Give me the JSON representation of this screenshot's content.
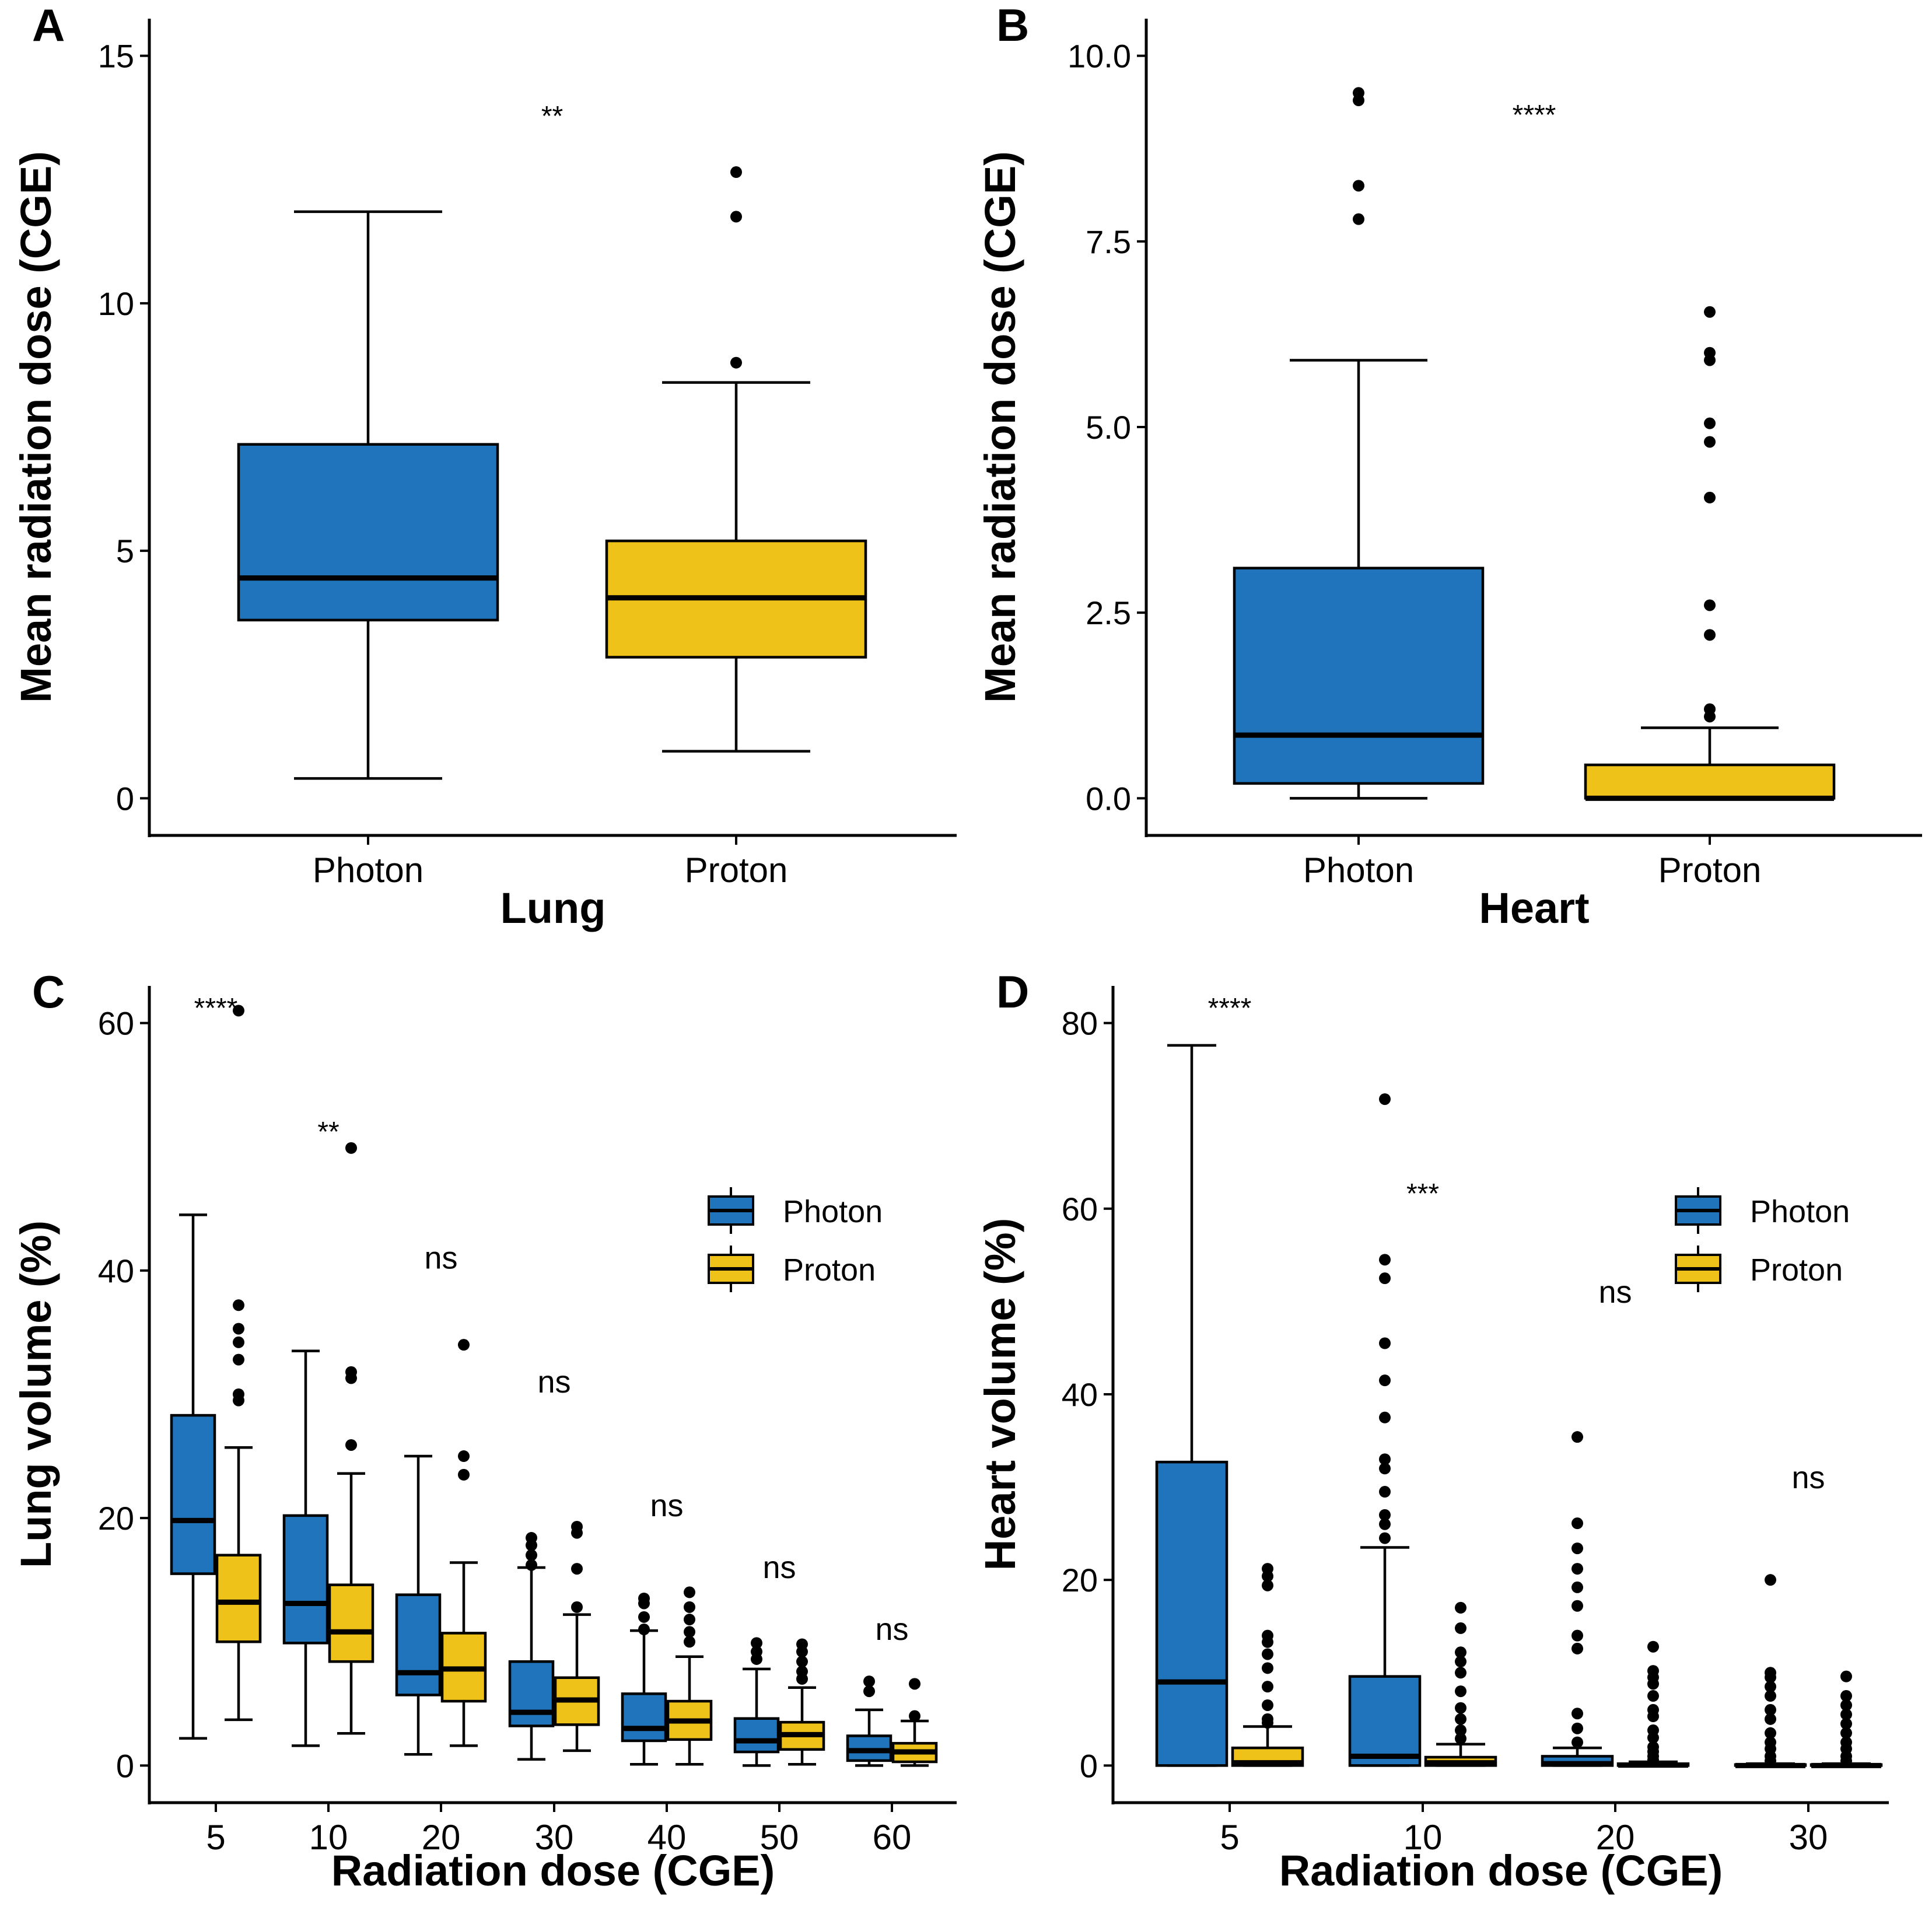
{
  "colors": {
    "photon": "#1f74bb",
    "proton": "#efc21a",
    "line": "#000000"
  },
  "chart_data": [
    {
      "panel": "A",
      "type": "box",
      "title": "",
      "xlabel": "Lung",
      "ylabel": "Mean radiation dose (CGE)",
      "ylim": [
        -0.75,
        15.75
      ],
      "yticks": [
        0,
        5,
        10,
        15
      ],
      "ytick_labels": [
        "0",
        "5",
        "10",
        "15"
      ],
      "categories": [
        "Photon",
        "Proton"
      ],
      "groups": [
        {
          "category": "Photon",
          "series": "photon",
          "q1": 3.6,
          "median": 4.45,
          "q3": 7.15,
          "whisker_low": 0.4,
          "whisker_high": 11.85,
          "outliers": []
        },
        {
          "category": "Proton",
          "series": "proton",
          "q1": 2.85,
          "median": 4.05,
          "q3": 5.2,
          "whisker_low": 0.95,
          "whisker_high": 8.4,
          "outliers": [
            8.8,
            11.75,
            12.65
          ]
        }
      ],
      "annotations": [
        {
          "label": "**",
          "between": [
            "Photon",
            "Proton"
          ],
          "y": 13.85
        }
      ]
    },
    {
      "panel": "B",
      "type": "box",
      "title": "",
      "xlabel": "Heart",
      "ylabel": "Mean radiation dose (CGE)",
      "ylim": [
        -0.5,
        10.5
      ],
      "yticks": [
        0,
        2.5,
        5,
        7.5,
        10
      ],
      "ytick_labels": [
        "0.0",
        "2.5",
        "5.0",
        "7.5",
        "10.0"
      ],
      "categories": [
        "Photon",
        "Proton"
      ],
      "groups": [
        {
          "category": "Photon",
          "series": "photon",
          "q1": 0.2,
          "median": 0.85,
          "q3": 3.1,
          "whisker_low": 0.0,
          "whisker_high": 5.9,
          "outliers": [
            7.8,
            8.25,
            9.4,
            9.5
          ]
        },
        {
          "category": "Proton",
          "series": "proton",
          "q1": 0.0,
          "median": 0.0,
          "q3": 0.45,
          "whisker_low": 0.0,
          "whisker_high": 0.95,
          "outliers": [
            1.1,
            1.2,
            2.2,
            2.6,
            4.05,
            4.8,
            5.05,
            5.9,
            6.0,
            6.55
          ]
        }
      ],
      "annotations": [
        {
          "label": "****",
          "between": [
            "Photon",
            "Proton"
          ],
          "y": 9.25
        }
      ]
    },
    {
      "panel": "C",
      "type": "box",
      "title": "",
      "xlabel": "Radiation dose (CGE)",
      "ylabel": "Lung volume (%)",
      "ylim": [
        -3,
        63
      ],
      "yticks": [
        0,
        20,
        40,
        60
      ],
      "ytick_labels": [
        "0",
        "20",
        "40",
        "60"
      ],
      "categories": [
        "5",
        "10",
        "20",
        "30",
        "40",
        "50",
        "60"
      ],
      "legend": {
        "entries": [
          "Photon",
          "Proton"
        ],
        "placement": "right"
      },
      "groups": [
        {
          "category": "5",
          "series": "photon",
          "q1": 15.5,
          "median": 19.8,
          "q3": 28.3,
          "whisker_low": 2.2,
          "whisker_high": 44.5,
          "outliers": []
        },
        {
          "category": "5",
          "series": "proton",
          "q1": 10.0,
          "median": 13.2,
          "q3": 17.0,
          "whisker_low": 3.7,
          "whisker_high": 25.7,
          "outliers": [
            29.5,
            30.0,
            32.8,
            34.2,
            35.3,
            37.2,
            61.0
          ]
        },
        {
          "category": "10",
          "series": "photon",
          "q1": 9.9,
          "median": 13.1,
          "q3": 20.2,
          "whisker_low": 1.6,
          "whisker_high": 33.5,
          "outliers": []
        },
        {
          "category": "10",
          "series": "proton",
          "q1": 8.4,
          "median": 10.8,
          "q3": 14.6,
          "whisker_low": 2.6,
          "whisker_high": 23.6,
          "outliers": [
            25.9,
            31.3,
            31.8,
            49.9
          ]
        },
        {
          "category": "20",
          "series": "photon",
          "q1": 5.7,
          "median": 7.5,
          "q3": 13.8,
          "whisker_low": 0.9,
          "whisker_high": 25.0,
          "outliers": []
        },
        {
          "category": "20",
          "series": "proton",
          "q1": 5.2,
          "median": 7.8,
          "q3": 10.7,
          "whisker_low": 1.6,
          "whisker_high": 16.4,
          "outliers": [
            23.5,
            25.0,
            34.0
          ]
        },
        {
          "category": "30",
          "series": "photon",
          "q1": 3.2,
          "median": 4.3,
          "q3": 8.4,
          "whisker_low": 0.5,
          "whisker_high": 16.0,
          "outliers": [
            16.2,
            17.0,
            17.8,
            18.4
          ]
        },
        {
          "category": "30",
          "series": "proton",
          "q1": 3.3,
          "median": 5.3,
          "q3": 7.1,
          "whisker_low": 1.2,
          "whisker_high": 12.2,
          "outliers": [
            12.8,
            15.9,
            18.8,
            19.3
          ]
        },
        {
          "category": "40",
          "series": "photon",
          "q1": 2.0,
          "median": 3.0,
          "q3": 5.8,
          "whisker_low": 0.1,
          "whisker_high": 10.9,
          "outliers": [
            11.0,
            12.0,
            13.1,
            13.5
          ]
        },
        {
          "category": "40",
          "series": "proton",
          "q1": 2.1,
          "median": 3.6,
          "q3": 5.2,
          "whisker_low": 0.1,
          "whisker_high": 8.8,
          "outliers": [
            10.0,
            10.8,
            11.8,
            12.8,
            14.0
          ]
        },
        {
          "category": "50",
          "series": "photon",
          "q1": 1.1,
          "median": 2.0,
          "q3": 3.8,
          "whisker_low": 0.0,
          "whisker_high": 7.8,
          "outliers": [
            8.6,
            9.2,
            9.9
          ]
        },
        {
          "category": "50",
          "series": "proton",
          "q1": 1.3,
          "median": 2.5,
          "q3": 3.5,
          "whisker_low": 0.1,
          "whisker_high": 6.3,
          "outliers": [
            7.0,
            7.6,
            8.4,
            9.2,
            9.8
          ]
        },
        {
          "category": "60",
          "series": "photon",
          "q1": 0.4,
          "median": 1.2,
          "q3": 2.4,
          "whisker_low": 0.0,
          "whisker_high": 4.5,
          "outliers": [
            6.0,
            6.8
          ]
        },
        {
          "category": "60",
          "series": "proton",
          "q1": 0.3,
          "median": 1.1,
          "q3": 1.8,
          "whisker_low": 0.0,
          "whisker_high": 3.6,
          "outliers": [
            4.0,
            6.6
          ]
        }
      ],
      "annotations": [
        {
          "label": "****",
          "category": "5",
          "y": 61.5
        },
        {
          "label": "**",
          "category": "10",
          "y": 51.5
        },
        {
          "label": "ns",
          "category": "20",
          "y": 41.0
        },
        {
          "label": "ns",
          "category": "30",
          "y": 31.0
        },
        {
          "label": "ns",
          "category": "40",
          "y": 21.0
        },
        {
          "label": "ns",
          "category": "50",
          "y": 16.0
        },
        {
          "label": "ns",
          "category": "60",
          "y": 11.0
        }
      ]
    },
    {
      "panel": "D",
      "type": "box",
      "title": "",
      "xlabel": "Radiation dose (CGE)",
      "ylabel": "Heart volume (%)",
      "ylim": [
        -4,
        84
      ],
      "yticks": [
        0,
        20,
        40,
        60,
        80
      ],
      "ytick_labels": [
        "0",
        "20",
        "40",
        "60",
        "80"
      ],
      "categories": [
        "5",
        "10",
        "20",
        "30"
      ],
      "legend": {
        "entries": [
          "Photon",
          "Proton"
        ],
        "placement": "right"
      },
      "groups": [
        {
          "category": "5",
          "series": "photon",
          "q1": 0.0,
          "median": 9.0,
          "q3": 32.7,
          "whisker_low": 0.0,
          "whisker_high": 77.6,
          "outliers": []
        },
        {
          "category": "5",
          "series": "proton",
          "q1": 0.0,
          "median": 0.3,
          "q3": 1.9,
          "whisker_low": 0.0,
          "whisker_high": 4.2,
          "outliers": [
            4.6,
            5.0,
            6.5,
            8.5,
            10.5,
            12.0,
            13.3,
            14.0,
            19.4,
            20.4,
            21.2
          ]
        },
        {
          "category": "10",
          "series": "photon",
          "q1": 0.0,
          "median": 1.0,
          "q3": 9.6,
          "whisker_low": 0.0,
          "whisker_high": 23.5,
          "outliers": [
            24.5,
            26.0,
            27.0,
            29.5,
            32.0,
            33.0,
            37.5,
            41.5,
            45.5,
            52.5,
            54.5,
            71.8
          ]
        },
        {
          "category": "10",
          "series": "proton",
          "q1": 0.0,
          "median": 0.3,
          "q3": 0.9,
          "whisker_low": 0.0,
          "whisker_high": 2.3,
          "outliers": [
            2.9,
            3.8,
            5.0,
            6.2,
            8.0,
            10.0,
            11.2,
            12.2,
            14.8,
            17.0
          ]
        },
        {
          "category": "20",
          "series": "photon",
          "q1": 0.0,
          "median": 0.2,
          "q3": 1.0,
          "whisker_low": 0.0,
          "whisker_high": 1.9,
          "outliers": [
            2.5,
            4.0,
            5.6,
            12.6,
            14.0,
            17.2,
            19.2,
            21.2,
            23.4,
            26.1,
            35.4
          ]
        },
        {
          "category": "20",
          "series": "proton",
          "q1": 0.0,
          "median": 0.05,
          "q3": 0.2,
          "whisker_low": 0.0,
          "whisker_high": 0.4,
          "outliers": [
            0.6,
            1.0,
            1.5,
            2.0,
            3.0,
            3.8,
            5.3,
            6.0,
            7.5,
            8.8,
            9.5,
            10.2,
            12.8
          ]
        },
        {
          "category": "30",
          "series": "photon",
          "q1": 0.0,
          "median": 0.0,
          "q3": 0.1,
          "whisker_low": 0.0,
          "whisker_high": 0.2,
          "outliers": [
            0.5,
            1.0,
            1.8,
            2.5,
            3.5,
            5.0,
            6.0,
            7.5,
            8.5,
            9.5,
            10.0,
            20.0
          ]
        },
        {
          "category": "30",
          "series": "proton",
          "q1": 0.0,
          "median": 0.0,
          "q3": 0.1,
          "whisker_low": 0.0,
          "whisker_high": 0.2,
          "outliers": [
            0.5,
            1.0,
            1.8,
            2.5,
            3.5,
            4.5,
            5.5,
            6.5,
            7.5,
            9.6
          ]
        }
      ],
      "annotations": [
        {
          "label": "****",
          "category": "5",
          "y": 82.0
        },
        {
          "label": "***",
          "category": "10",
          "y": 62.0
        },
        {
          "label": "ns",
          "category": "20",
          "y": 51.0
        },
        {
          "label": "ns",
          "category": "30",
          "y": 31.0
        }
      ]
    }
  ]
}
